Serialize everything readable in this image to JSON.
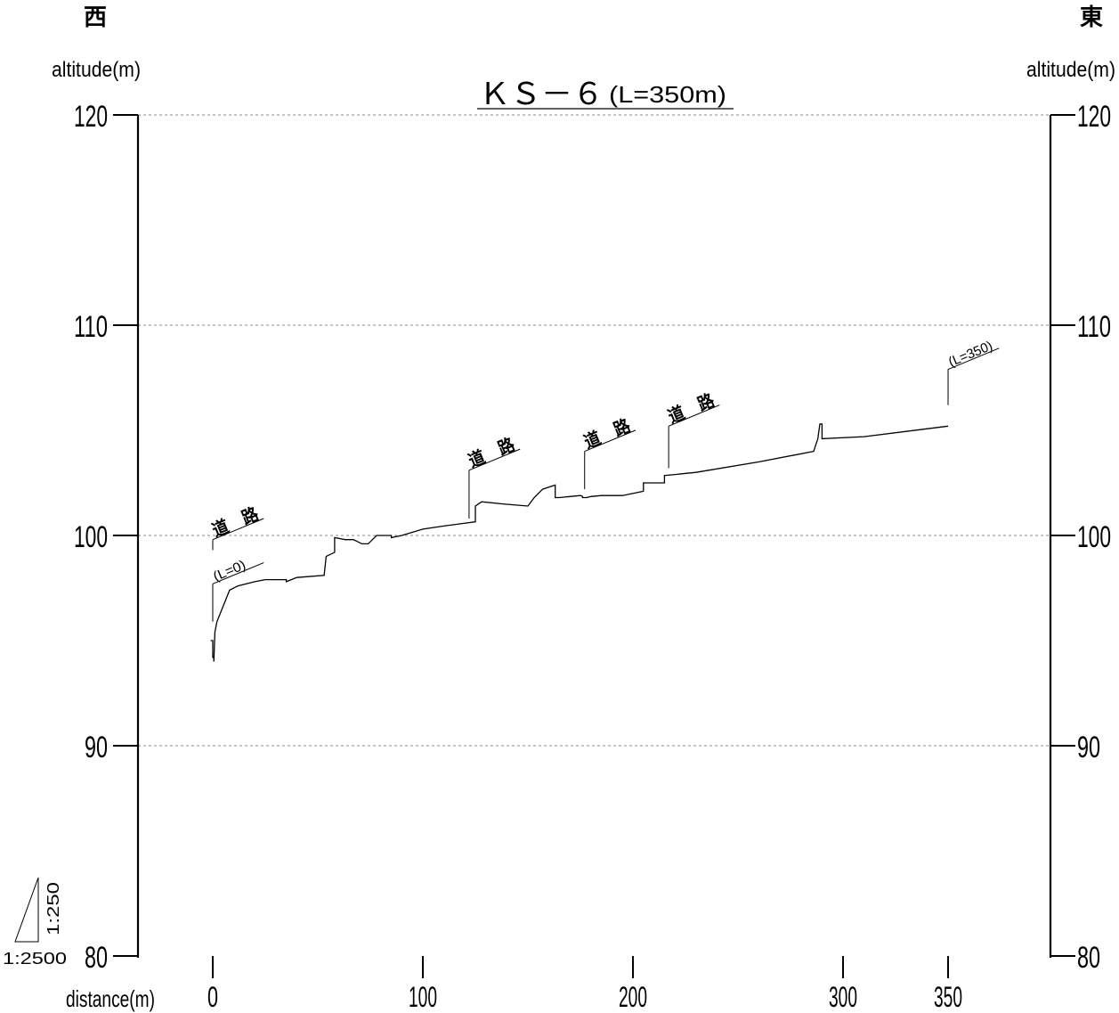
{
  "chart_data": {
    "type": "line",
    "title": "ＫＳ－６",
    "title_suffix": "(L=350m)",
    "direction_left": "西",
    "direction_right": "東",
    "ylabel": "altitude(m)",
    "xlabel": "distance(m)",
    "ylim": [
      80,
      120
    ],
    "xlim": [
      -35,
      385
    ],
    "y_ticks": [
      80,
      90,
      100,
      110,
      120
    ],
    "x_ticks": [
      0,
      100,
      200,
      300,
      350
    ],
    "grid": true,
    "grid_y": [
      90,
      100,
      110,
      120
    ],
    "scale_horizontal": "1:2500",
    "scale_vertical": "1:250",
    "series": [
      {
        "x": [
          -1,
          0,
          0,
          0.5,
          0.5,
          1,
          2,
          8,
          12,
          20,
          25,
          35,
          35,
          40,
          53,
          54,
          58,
          58,
          63,
          67,
          71,
          74,
          78,
          85,
          85,
          90,
          100,
          110,
          125,
          125,
          128,
          138,
          150,
          153,
          157,
          163,
          163,
          165,
          170,
          175,
          176,
          176,
          178,
          180,
          185,
          190,
          195,
          205,
          205,
          215,
          215,
          220,
          230,
          260,
          286,
          288,
          289,
          290,
          290,
          310,
          350
        ],
        "y": [
          95,
          95,
          94.2,
          94.2,
          94,
          95.4,
          95.9,
          97.4,
          97.6,
          97.8,
          97.9,
          97.9,
          97.8,
          98,
          98.1,
          99,
          99.2,
          99.9,
          99.8,
          99.8,
          99.6,
          99.6,
          100,
          100,
          99.9,
          100,
          100.3,
          100.45,
          100.65,
          101.4,
          101.6,
          101.5,
          101.4,
          101.8,
          102.2,
          102.4,
          101.8,
          101.8,
          101.85,
          101.9,
          101.85,
          101.8,
          101.8,
          101.85,
          101.9,
          101.9,
          101.9,
          102.1,
          102.5,
          102.5,
          102.85,
          102.9,
          103.0,
          103.5,
          104.0,
          104.6,
          105.3,
          105.3,
          104.6,
          104.7,
          105.2
        ]
      }
    ],
    "annotations": [
      {
        "text": "道　路",
        "x": 0,
        "y_bottom": 99.3,
        "y_top": 99.8
      },
      {
        "text": "(L=0)",
        "x": 0,
        "y_bottom": 95.9,
        "y_top": 97.7
      },
      {
        "text": "道　路",
        "x": 122,
        "y_bottom": 100.8,
        "y_top": 103.1
      },
      {
        "text": "道　路",
        "x": 177,
        "y_bottom": 102.2,
        "y_top": 104.0
      },
      {
        "text": "道　路",
        "x": 217,
        "y_bottom": 103.2,
        "y_top": 105.2
      },
      {
        "text": "(L=350)",
        "x": 350,
        "y_bottom": 106.2,
        "y_top": 107.9
      }
    ]
  }
}
